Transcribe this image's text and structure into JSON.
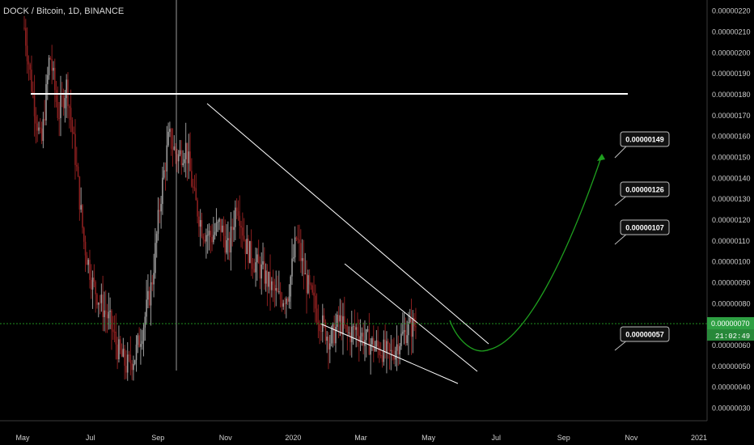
{
  "header": {
    "symbol_title": "DOCK / Bitcoin, 1D, BINANCE"
  },
  "chart_data": {
    "type": "candlestick",
    "x_ticks": [
      "May",
      "Jul",
      "Sep",
      "Nov",
      "2020",
      "Mar",
      "May",
      "Jul",
      "Sep",
      "Nov",
      "2021"
    ],
    "y_ticks": [
      "0.00000220",
      "0.00000210",
      "0.00000200",
      "0.00000190",
      "0.00000180",
      "0.00000170",
      "0.00000160",
      "0.00000150",
      "0.00000140",
      "0.00000130",
      "0.00000120",
      "0.00000110",
      "0.00000100",
      "0.00000090",
      "0.00000080",
      "0.00000070",
      "0.00000060",
      "0.00000050",
      "0.00000040",
      "0.00000030"
    ],
    "ylim": [
      2.4e-07,
      2.23e-06
    ],
    "current_price": "0.00000070",
    "countdown": "21:02:49",
    "resistance_level": 1.8e-06,
    "price_path": [
      [
        0.0,
        2.12e-06
      ],
      [
        0.02,
        1.8e-06
      ],
      [
        0.04,
        1.55e-06
      ],
      [
        0.06,
        2e-06
      ],
      [
        0.08,
        1.7e-06
      ],
      [
        0.1,
        1.85e-06
      ],
      [
        0.12,
        1.5e-06
      ],
      [
        0.14,
        1.1e-06
      ],
      [
        0.16,
        9e-07
      ],
      [
        0.18,
        8e-07
      ],
      [
        0.2,
        7.2e-07
      ],
      [
        0.22,
        5.8e-07
      ],
      [
        0.24,
        5e-07
      ],
      [
        0.26,
        5.5e-07
      ],
      [
        0.28,
        7e-07
      ],
      [
        0.3,
        9e-07
      ],
      [
        0.32,
        1.3e-06
      ],
      [
        0.34,
        1.6e-06
      ],
      [
        0.36,
        1.5e-06
      ],
      [
        0.38,
        1.55e-06
      ],
      [
        0.4,
        1.3e-06
      ],
      [
        0.42,
        1.15e-06
      ],
      [
        0.44,
        1.12e-06
      ],
      [
        0.46,
        1.18e-06
      ],
      [
        0.48,
        1.05e-06
      ],
      [
        0.5,
        1.3e-06
      ],
      [
        0.52,
        1.08e-06
      ],
      [
        0.54,
        1e-06
      ],
      [
        0.56,
        9.5e-07
      ],
      [
        0.58,
        8.8e-07
      ],
      [
        0.6,
        8.2e-07
      ],
      [
        0.62,
        8.5e-07
      ],
      [
        0.64,
        1.12e-06
      ],
      [
        0.66,
        9.2e-07
      ],
      [
        0.68,
        8e-07
      ],
      [
        0.7,
        7e-07
      ],
      [
        0.72,
        6.2e-07
      ],
      [
        0.74,
        7.2e-07
      ],
      [
        0.76,
        6.5e-07
      ],
      [
        0.78,
        6.8e-07
      ],
      [
        0.8,
        6.3e-07
      ],
      [
        0.82,
        6e-07
      ],
      [
        0.84,
        5.8e-07
      ],
      [
        0.86,
        5.5e-07
      ],
      [
        0.88,
        6.2e-07
      ],
      [
        0.9,
        6.8e-07
      ],
      [
        0.92,
        7e-07
      ]
    ],
    "projection_targets": [
      "0.00000149",
      "0.00000126",
      "0.00000107",
      "0.00000057"
    ],
    "colors": {
      "background": "#000000",
      "candle": "#9a9a9a",
      "candle_down": "#8b1f1f",
      "trendline": "#ffffff",
      "projection": "#1e9e1e",
      "price_tag": "#2ea043",
      "dotted": "#1f8f1f",
      "axis_text": "#cfcfcf",
      "callout_bg": "#111111"
    }
  }
}
